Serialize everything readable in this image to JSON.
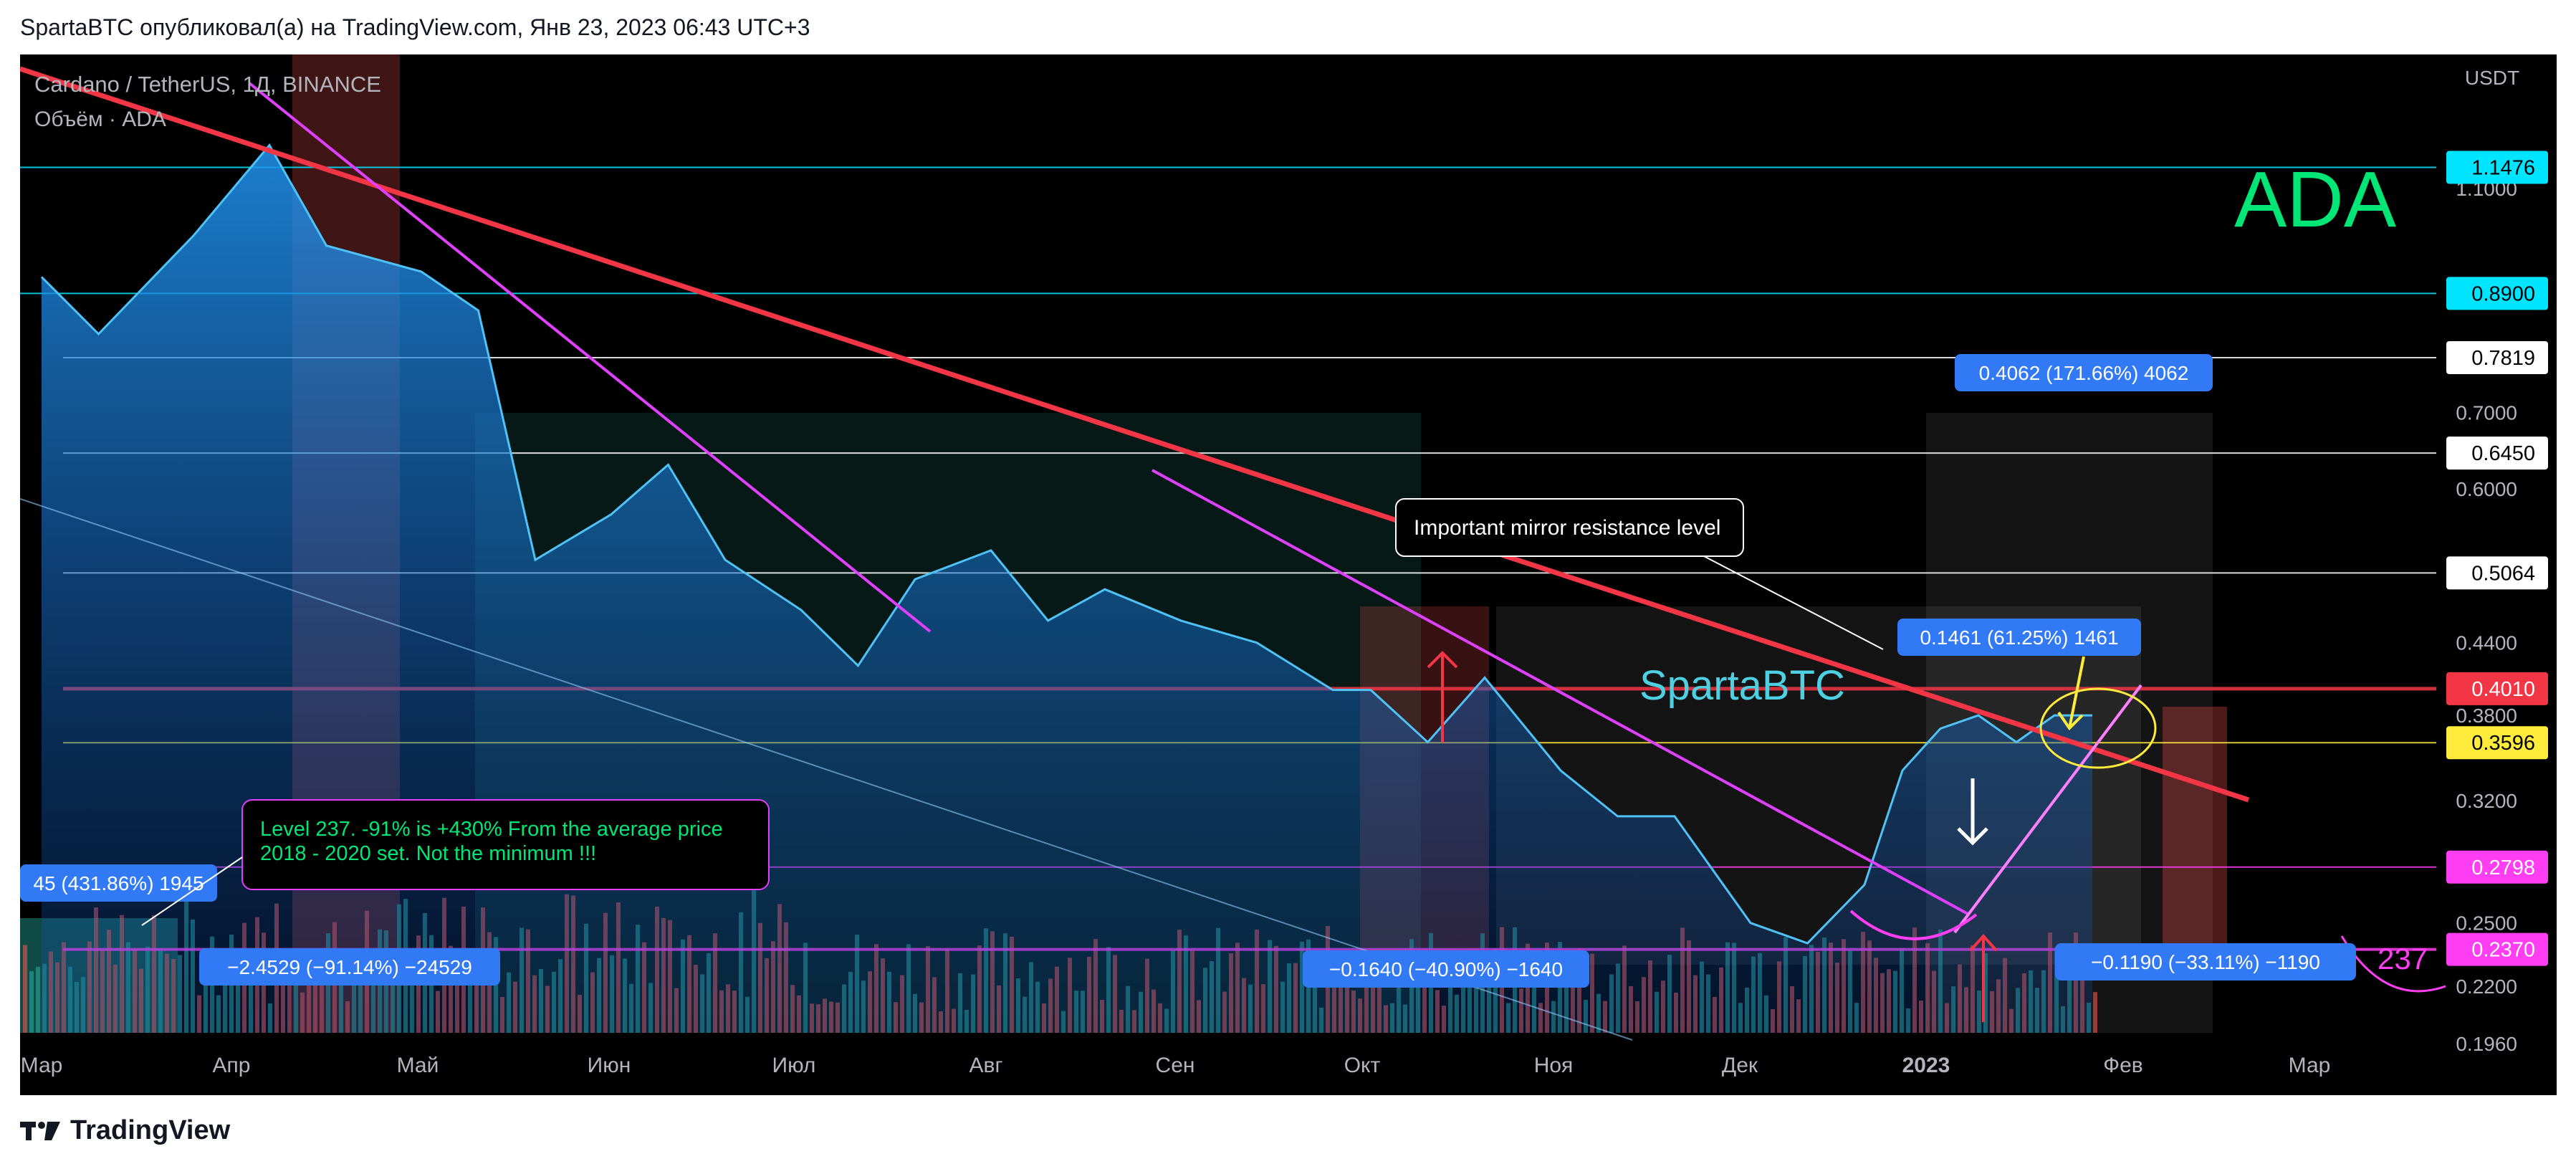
{
  "header": {
    "publish_line": "SpartaBTC опубликовал(а) на TradingView.com, Янв 23, 2023 06:43 UTC+3"
  },
  "footer": {
    "brand": "TradingView",
    "brand_icon": "tradingview-logo-icon"
  },
  "colors": {
    "background": "#000000",
    "resistance_red": "#f23645",
    "magenta": "#e040fb",
    "support_level": "#ff3df2",
    "yellow": "#ffeb3b",
    "cyan": "#00e5ff",
    "ada_green": "#00e676",
    "label_blue": "#3179f5"
  },
  "chart_data": {
    "type": "area",
    "instrument": "Cardano / TetherUS, 1Д, BINANCE",
    "volume_label": "Объём · ADA",
    "currency_unit": "USDT",
    "watermark_ticker": "ADA",
    "author_watermark": "SpartaBTC",
    "scale": "log",
    "ylim": [
      0.185,
      1.4
    ],
    "x_tick_labels": [
      "Мар",
      "Апр",
      "Май",
      "Июн",
      "Июл",
      "Авг",
      "Сен",
      "Окт",
      "Ноя",
      "Дек",
      "2023",
      "Фев",
      "Мар"
    ],
    "price_axis_ticks": [
      "1.1000",
      "0.7000",
      "0.6000",
      "0.4400",
      "0.3800",
      "0.3200",
      "0.2500",
      "0.2200",
      "0.1960"
    ],
    "price_levels": [
      {
        "label": "1.1476",
        "value": 1.1476,
        "color": "#00e5ff",
        "text_color": "#000000"
      },
      {
        "label": "0.8900",
        "value": 0.89,
        "color": "#00e5ff",
        "text_color": "#000000"
      },
      {
        "label": "0.7819",
        "value": 0.7819,
        "color": "#ffffff",
        "text_color": "#000000"
      },
      {
        "label": "0.6450",
        "value": 0.645,
        "color": "#ffffff",
        "text_color": "#000000"
      },
      {
        "label": "0.5064",
        "value": 0.5064,
        "color": "#ffffff",
        "text_color": "#000000"
      },
      {
        "label": "0.4010",
        "value": 0.401,
        "color": "#f23645",
        "text_color": "#ffffff"
      },
      {
        "label": "0.3596",
        "value": 0.3596,
        "color": "#ffeb3b",
        "text_color": "#000000"
      },
      {
        "label": "0.2798",
        "value": 0.2798,
        "color": "#ff3df2",
        "text_color": "#ffffff"
      },
      {
        "label": "0.2370",
        "value": 0.237,
        "color": "#ff3df2",
        "text_color": "#ffffff"
      }
    ],
    "price_series": {
      "x": [
        0,
        0.3,
        0.8,
        1.2,
        1.5,
        2.0,
        2.3,
        2.6,
        3.0,
        3.3,
        3.6,
        4.0,
        4.3,
        4.6,
        5.0,
        5.3,
        5.6,
        6.0,
        6.4,
        6.8,
        7.0,
        7.3,
        7.6,
        8.0,
        8.3,
        8.6,
        9.0,
        9.3,
        9.6,
        9.8,
        10.0,
        10.2,
        10.4,
        10.6,
        10.8
      ],
      "y": [
        0.92,
        0.82,
        1.0,
        1.2,
        0.98,
        0.93,
        0.86,
        0.52,
        0.57,
        0.63,
        0.52,
        0.47,
        0.42,
        0.5,
        0.53,
        0.46,
        0.49,
        0.46,
        0.44,
        0.4,
        0.4,
        0.36,
        0.41,
        0.34,
        0.31,
        0.31,
        0.25,
        0.24,
        0.27,
        0.34,
        0.37,
        0.38,
        0.36,
        0.38,
        0.38
      ]
    },
    "measurements": [
      {
        "text": "0.4062 (171.66%) 4062"
      },
      {
        "text": "0.1461 (61.25%) 1461"
      },
      {
        "text": "−2.4529 (−91.14%) −24529"
      },
      {
        "text": "−0.1640 (−40.90%) −1640"
      },
      {
        "text": "−0.1190 (−33.11%) −1190"
      },
      {
        "text": "45 (431.86%) 1945"
      }
    ],
    "annotations": [
      {
        "text": "Important mirror resistance level"
      },
      {
        "text_lines": [
          "Level 237. -91% is +430% From the average price",
          "2018 - 2020 set. Not the minimum !!!"
        ]
      },
      {
        "text": "237"
      }
    ]
  }
}
